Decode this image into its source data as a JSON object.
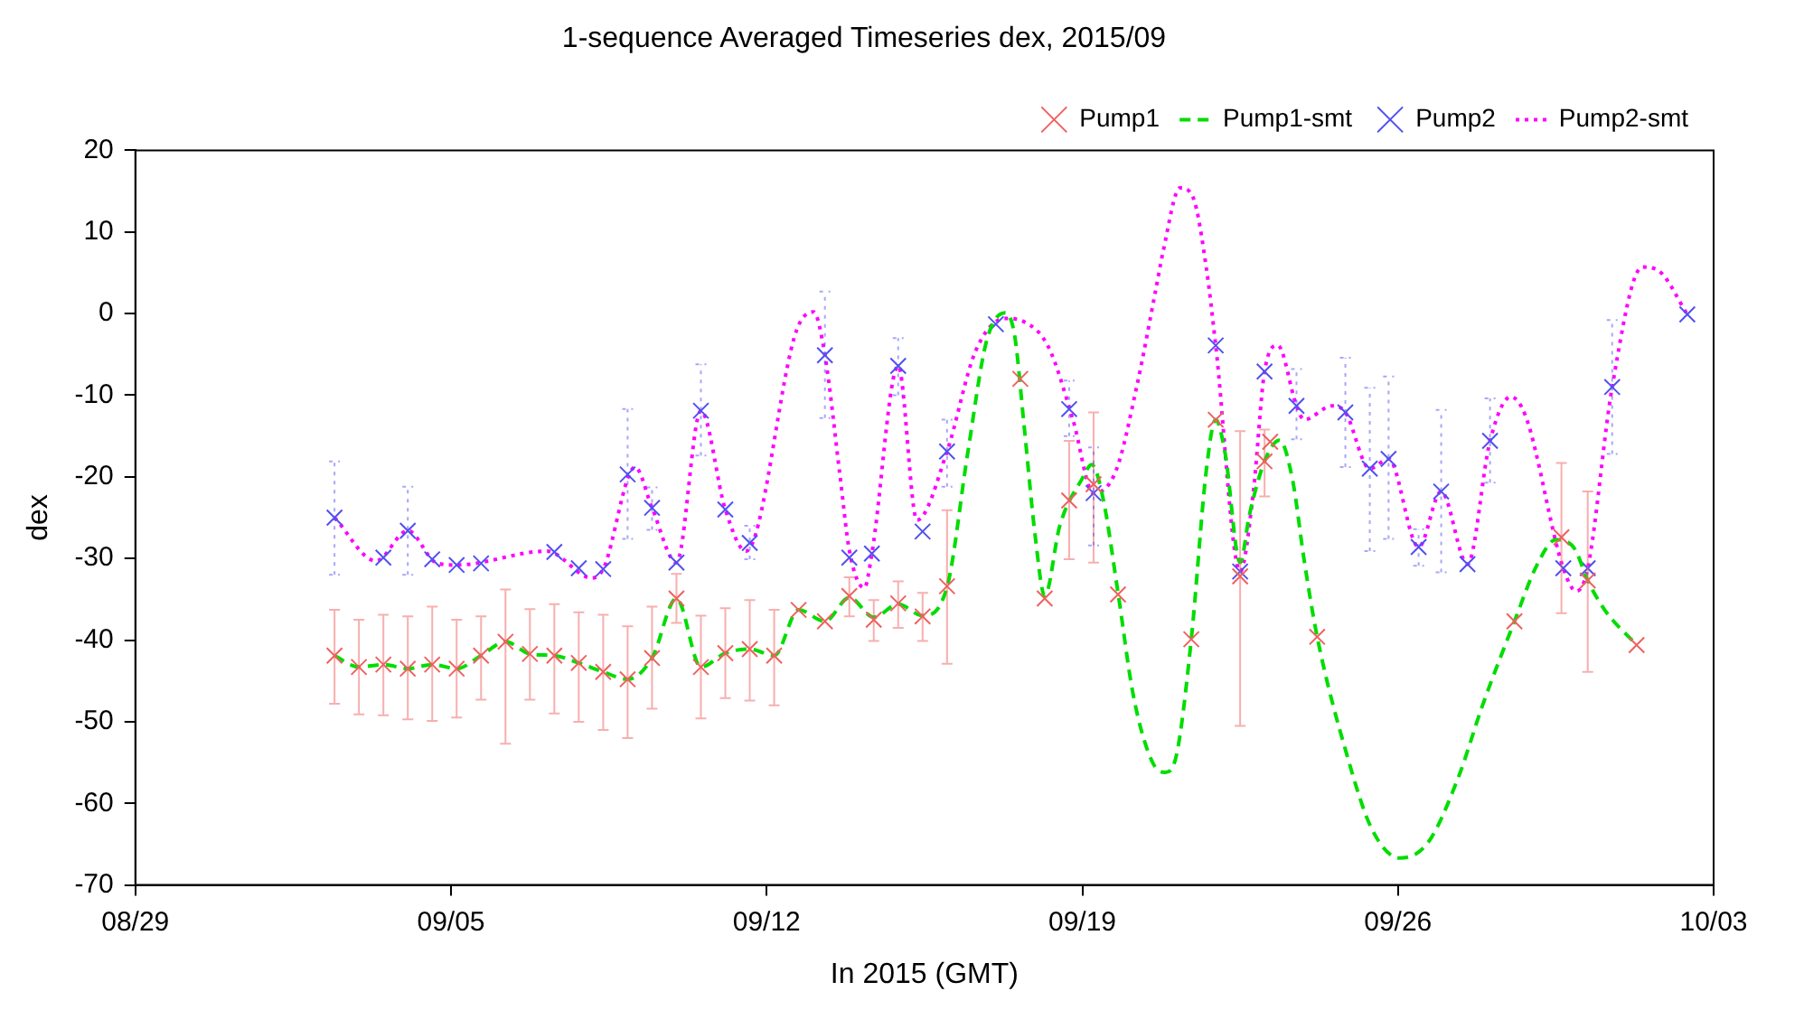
{
  "chart_data": {
    "type": "scatter",
    "title": "1-sequence Averaged Timeseries dex, 2015/09",
    "xlabel": "In 2015 (GMT)",
    "ylabel": "dex",
    "xlim": [
      "2015-08-29",
      "2015-10-03"
    ],
    "xticks": [
      {
        "value": "2015-08-29",
        "label": "08/29"
      },
      {
        "value": "2015-09-05",
        "label": "09/05"
      },
      {
        "value": "2015-09-12",
        "label": "09/12"
      },
      {
        "value": "2015-09-19",
        "label": "09/19"
      },
      {
        "value": "2015-09-26",
        "label": "09/26"
      },
      {
        "value": "2015-10-03",
        "label": "10/03"
      }
    ],
    "ylim": [
      -70,
      20
    ],
    "yticks": [
      -70,
      -60,
      -50,
      -40,
      -30,
      -20,
      -10,
      0,
      10,
      20
    ],
    "grid": false,
    "legend": "top right",
    "series": [
      {
        "name": "Pump1",
        "type": "scatter",
        "marker": "cross",
        "color": "#f06060",
        "x": [
          "2015-09-02T10:00",
          "2015-09-02T23:00",
          "2015-09-03T12:00",
          "2015-09-04T01:00",
          "2015-09-04T14:00",
          "2015-09-05T03:00",
          "2015-09-05T16:00",
          "2015-09-06T05:00",
          "2015-09-06T18:00",
          "2015-09-07T07:00",
          "2015-09-07T20:00",
          "2015-09-08T09:00",
          "2015-09-08T22:00",
          "2015-09-09T11:00",
          "2015-09-10T00:00",
          "2015-09-10T13:00",
          "2015-09-11T02:00",
          "2015-09-11T15:00",
          "2015-09-12T04:00",
          "2015-09-12T17:00",
          "2015-09-13T07:00",
          "2015-09-13T20:00",
          "2015-09-14T09:00",
          "2015-09-14T22:00",
          "2015-09-15T11:00",
          "2015-09-16T00:00",
          "2015-09-17T15:00",
          "2015-09-18T04:00",
          "2015-09-18T17:00",
          "2015-09-19T06:00",
          "2015-09-19T19:00",
          "2015-09-21T10:00",
          "2015-09-21T23:00",
          "2015-09-22T12:00",
          "2015-09-23T01:00",
          "2015-09-23T04:00",
          "2015-09-24T05:00",
          "2015-09-28T14:00",
          "2015-09-29T15:00",
          "2015-09-30T05:00",
          "2015-10-01T07:00"
        ],
        "values": [
          -41.9,
          -43.3,
          -43.0,
          -43.5,
          -43.0,
          -43.5,
          -41.9,
          -40.2,
          -41.7,
          -41.9,
          -42.8,
          -43.9,
          -44.8,
          -42.2,
          -34.9,
          -43.3,
          -41.6,
          -41.1,
          -41.9,
          -36.3,
          -37.7,
          -34.6,
          -37.5,
          -35.5,
          -37.1,
          -33.4,
          -8.0,
          -34.9,
          -22.9,
          -20.9,
          -34.4,
          -39.9,
          -13.0,
          -32.2,
          -18.1,
          -15.7,
          -39.6,
          -37.7,
          -27.4,
          -32.7,
          -40.6
        ],
        "errors": [
          [
            -47.8,
            -36.3
          ],
          [
            -49.1,
            -37.5
          ],
          [
            -49.2,
            -36.9
          ],
          [
            -49.7,
            -37.1
          ],
          [
            -49.9,
            -35.9
          ],
          [
            -49.5,
            -37.5
          ],
          [
            -47.3,
            -37.1
          ],
          [
            -52.7,
            -33.8
          ],
          [
            -47.3,
            -36.2
          ],
          [
            -49,
            -35.6
          ],
          [
            -50,
            -36.6
          ],
          [
            -51,
            -36.9
          ],
          [
            -52,
            -38.3
          ],
          [
            -48.4,
            -35.9
          ],
          [
            -37.9,
            -31.9
          ],
          [
            -49.6,
            -37
          ],
          [
            -47.1,
            -36.1
          ],
          [
            -47.4,
            -35.1
          ],
          [
            -48,
            -36.3
          ],
          null,
          null,
          [
            -37.1,
            -32.3
          ],
          [
            -40.1,
            -35.1
          ],
          [
            -38.5,
            -32.8
          ],
          [
            -40.1,
            -34.2
          ],
          [
            -42.9,
            -24.1
          ],
          null,
          null,
          [
            -30.1,
            -15.6
          ],
          [
            -30.5,
            -12.1
          ],
          null,
          null,
          null,
          [
            -50.5,
            -14.4
          ],
          [
            -22.4,
            -14.2
          ],
          null,
          null,
          null,
          [
            -36.7,
            -18.3
          ],
          [
            -43.9,
            -21.8
          ],
          null
        ]
      },
      {
        "name": "Pump1-smt",
        "type": "line",
        "marker": "none",
        "line_style": "dashed",
        "color": "#00dd00",
        "x": [
          "2015-09-02T10:00",
          "2015-09-02T23:00",
          "2015-09-03T12:00",
          "2015-09-04T01:00",
          "2015-09-04T14:00",
          "2015-09-05T03:00",
          "2015-09-05T16:00",
          "2015-09-06T05:00",
          "2015-09-06T18:00",
          "2015-09-07T07:00",
          "2015-09-07T20:00",
          "2015-09-08T09:00",
          "2015-09-08T22:00",
          "2015-09-09T11:00",
          "2015-09-10T00:00",
          "2015-09-10T13:00",
          "2015-09-11T02:00",
          "2015-09-11T15:00",
          "2015-09-12T04:00",
          "2015-09-12T17:00",
          "2015-09-13T07:00",
          "2015-09-13T20:00",
          "2015-09-14T09:00",
          "2015-09-14T22:00",
          "2015-09-15T11:00",
          "2015-09-16T00:00",
          "2015-09-16T11:00",
          "2015-09-16T21:00",
          "2015-09-17T07:00",
          "2015-09-17T12:00",
          "2015-09-17T17:00",
          "2015-09-17T23:00",
          "2015-09-18T04:00",
          "2015-09-18T12:00",
          "2015-09-19T00:00",
          "2015-09-19T05:00",
          "2015-09-19T11:00",
          "2015-09-19T19:00",
          "2015-09-20T03:00",
          "2015-09-20T13:00",
          "2015-09-20T20:00",
          "2015-09-21T02:00",
          "2015-09-21T10:00",
          "2015-09-21T18:00",
          "2015-09-21T23:00",
          "2015-09-22T04:00",
          "2015-09-22T12:00",
          "2015-09-22T17:00",
          "2015-09-23T01:00",
          "2015-09-23T09:00",
          "2015-09-23T16:00",
          "2015-09-23T22:00",
          "2015-09-24T05:00",
          "2015-09-24T21:00",
          "2015-09-25T10:00",
          "2015-09-26T01:00",
          "2015-09-26T16:00",
          "2015-09-27T08:00",
          "2015-09-27T21:00",
          "2015-09-28T14:00",
          "2015-09-29T02:00",
          "2015-09-29T12:00",
          "2015-09-29T22:00",
          "2015-09-30T05:00",
          "2015-09-30T14:00",
          "2015-10-01T07:00"
        ],
        "values": [
          -41.9,
          -43.3,
          -43.0,
          -43.5,
          -43.0,
          -43.5,
          -41.9,
          -40.2,
          -41.7,
          -41.9,
          -42.8,
          -43.9,
          -44.8,
          -42.2,
          -34.9,
          -43.3,
          -41.6,
          -41.1,
          -41.9,
          -36.3,
          -37.7,
          -34.8,
          -37.2,
          -35.6,
          -37.0,
          -33.5,
          -17.1,
          -3.4,
          0.1,
          -2.7,
          -13.7,
          -27.4,
          -34.6,
          -26.0,
          -20.2,
          -18.5,
          -22.6,
          -34.2,
          -46.6,
          -54.8,
          -56.2,
          -54.2,
          -39.9,
          -19.2,
          -13.0,
          -17.1,
          -30.5,
          -24.6,
          -18.1,
          -15.5,
          -20.5,
          -30.1,
          -39.6,
          -54.2,
          -63.1,
          -66.7,
          -64.8,
          -56.9,
          -48.0,
          -37.7,
          -30.8,
          -27.7,
          -28.8,
          -32.7,
          -36.3,
          -40.6
        ]
      },
      {
        "name": "Pump2",
        "type": "scatter",
        "marker": "cross",
        "line_style": "dotted",
        "color": "#5050f0",
        "x": [
          "2015-09-02T10:00",
          "2015-09-03T12:00",
          "2015-09-04T01:00",
          "2015-09-04T14:00",
          "2015-09-05T03:00",
          "2015-09-05T16:00",
          "2015-09-07T07:00",
          "2015-09-07T20:00",
          "2015-09-08T09:00",
          "2015-09-08T22:00",
          "2015-09-09T11:00",
          "2015-09-10T00:00",
          "2015-09-10T13:00",
          "2015-09-11T02:00",
          "2015-09-11T15:00",
          "2015-09-13T07:00",
          "2015-09-13T20:00",
          "2015-09-14T08:00",
          "2015-09-14T22:00",
          "2015-09-15T11:00",
          "2015-09-16T00:00",
          "2015-09-17T02:00",
          "2015-09-18T17:00",
          "2015-09-19T06:00",
          "2015-09-21T23:00",
          "2015-09-22T12:00",
          "2015-09-23T01:00",
          "2015-09-23T18:00",
          "2015-09-24T20:00",
          "2015-09-25T09:00",
          "2015-09-25T19:00",
          "2015-09-26T11:00",
          "2015-09-26T23:00",
          "2015-09-27T13:00",
          "2015-09-28T01:00",
          "2015-09-29T16:00",
          "2015-09-30T05:00",
          "2015-09-30T18:00",
          "2015-10-02T10:00"
        ],
        "values": [
          -25.0,
          -29.9,
          -26.6,
          -30.1,
          -30.8,
          -30.6,
          -29.2,
          -31.2,
          -31.3,
          -19.7,
          -23.8,
          -30.5,
          -11.9,
          -24.0,
          -28.1,
          -5.1,
          -29.9,
          -29.4,
          -6.4,
          -26.7,
          -16.9,
          -1.3,
          -11.7,
          -22.0,
          -3.9,
          -31.6,
          -7.1,
          -11.3,
          -12.1,
          -19.0,
          -17.8,
          -28.6,
          -21.8,
          -30.7,
          -15.6,
          -31.2,
          -31.2,
          -9.0,
          -0.1
        ],
        "errors": [
          [
            -32.0,
            -18.1
          ],
          null,
          [
            -32.0,
            -21.2
          ],
          null,
          null,
          null,
          null,
          null,
          null,
          [
            -27.6,
            -11.7
          ],
          [
            -26.5,
            -21.3
          ],
          null,
          [
            -17.4,
            -6.2
          ],
          null,
          [
            -30.1,
            -26.0
          ],
          [
            -12.8,
            2.7
          ],
          null,
          null,
          [
            -10,
            -3
          ],
          null,
          [
            -21.2,
            -13
          ],
          null,
          [
            -15,
            -8.2
          ],
          [
            -28.4,
            -16.4
          ],
          null,
          null,
          null,
          [
            -15.4,
            -6.8
          ],
          [
            -18.8,
            -5.4
          ],
          [
            -29.1,
            -9.1
          ],
          [
            -27.6,
            -7.7
          ],
          [
            -30.9,
            -26.4
          ],
          [
            -31.7,
            -11.8
          ],
          null,
          [
            -20.7,
            -10.4
          ],
          null,
          null,
          [
            -17.2,
            -0.8
          ],
          null
        ]
      },
      {
        "name": "Pump2-smt",
        "type": "line",
        "marker": "none",
        "line_style": "dotted",
        "color": "#ff00ff",
        "x": [
          "2015-09-02T10:00",
          "2015-09-03T08:00",
          "2015-09-04T01:00",
          "2015-09-04T16:00",
          "2015-09-05T03:00",
          "2015-09-07T03:00",
          "2015-09-08T03:00",
          "2015-09-08T09:00",
          "2015-09-09T02:00",
          "2015-09-09T11:00",
          "2015-09-10T00:00",
          "2015-09-10T13:00",
          "2015-09-11T02:00",
          "2015-09-11T13:00",
          "2015-09-12T16:00",
          "2015-09-13T01:00",
          "2015-09-13T07:00",
          "2015-09-13T15:00",
          "2015-09-13T20:00",
          "2015-09-14T04:00",
          "2015-09-14T08:00",
          "2015-09-14T22:00",
          "2015-09-15T08:00",
          "2015-09-16T00:00",
          "2015-09-16T15:00",
          "2015-09-17T07:00",
          "2015-09-17T17:00",
          "2015-09-18T06:00",
          "2015-09-18T19:00",
          "2015-09-19T06:00",
          "2015-09-19T18:00",
          "2015-09-20T05:00",
          "2015-09-20T15:00",
          "2015-09-20T19:00",
          "2015-09-21T04:00",
          "2015-09-21T11:00",
          "2015-09-21T18:00",
          "2015-09-21T23:00",
          "2015-09-22T12:00",
          "2015-09-22T19:00",
          "2015-09-23T01:00",
          "2015-09-23T08:00",
          "2015-09-23T18:00",
          "2015-09-23T22:00",
          "2015-09-24T13:00",
          "2015-09-24T20:00",
          "2015-09-25T09:00",
          "2015-09-25T19:00",
          "2015-09-26T11:00",
          "2015-09-26T23:00",
          "2015-09-27T13:00",
          "2015-09-28T01:00",
          "2015-09-28T12:00",
          "2015-09-28T20:00",
          "2015-09-29T16:00",
          "2015-09-29T23:00",
          "2015-09-30T05:00",
          "2015-09-30T18:00",
          "2015-10-01T10:00",
          "2015-10-01T19:00",
          "2015-10-02T10:00"
        ],
        "values": [
          -25.0,
          -30.3,
          -26.6,
          -30.5,
          -30.8,
          -29.1,
          -32.4,
          -31.3,
          -18.8,
          -23.8,
          -30.5,
          -11.9,
          -24.0,
          -29.1,
          -2.0,
          0.2,
          -5.1,
          -19.8,
          -29.0,
          -33.6,
          -29.4,
          -6.4,
          -25.3,
          -16.9,
          -4.7,
          -0.6,
          -1.0,
          -4.1,
          -13.0,
          -22.0,
          -19.2,
          -8.9,
          2.8,
          7.6,
          15.4,
          14.2,
          5.6,
          -3.9,
          -31.6,
          -21.9,
          -7.1,
          -3.9,
          -11.3,
          -13.0,
          -11.3,
          -12.1,
          -19.0,
          -17.8,
          -28.6,
          -21.8,
          -30.7,
          -15.6,
          -10.2,
          -12.6,
          -31.2,
          -34.0,
          -31.2,
          -9.0,
          5.7,
          5.2,
          -0.1
        ]
      }
    ]
  }
}
